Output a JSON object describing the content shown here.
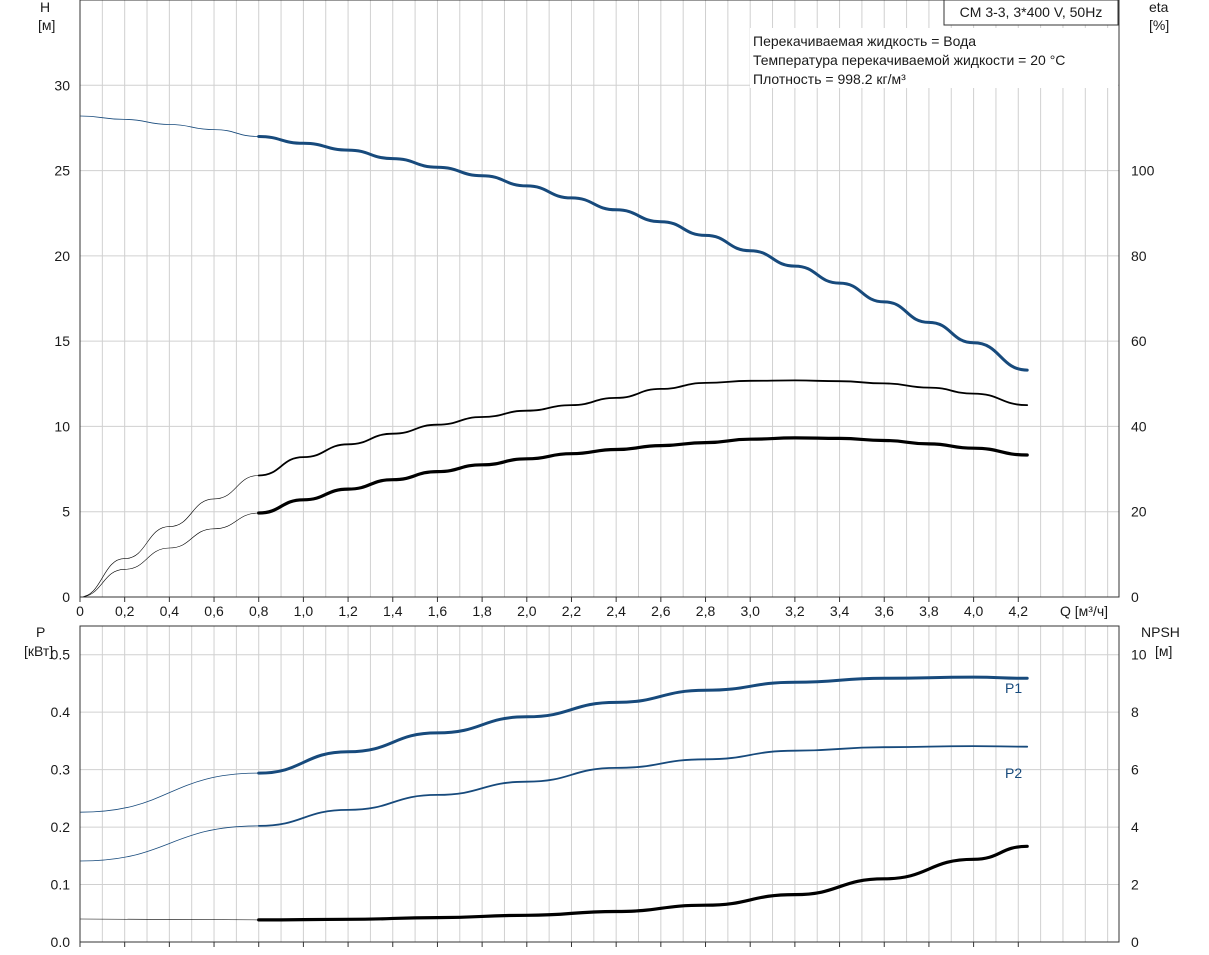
{
  "header": {
    "model_label": "CM 3-3, 3*400 V, 50Hz",
    "info_lines": [
      "Перекачиваемая жидкость = Вода",
      "Температура перекачиваемой жидкости = 20 °C",
      "Плотность = 998.2 кг/м³"
    ]
  },
  "colors": {
    "head_curve": "#174a7c",
    "eta_curves": "#000000",
    "power_curves": "#174a7c",
    "npsh_curve": "#000000",
    "grid": "#d0d0d0"
  },
  "chart_data": [
    {
      "type": "line",
      "panel": "head-efficiency",
      "xlabel": "Q [м³/ч]",
      "ylabel_left": [
        "H",
        "[м]"
      ],
      "ylabel_right": [
        "eta",
        "[%]"
      ],
      "xlim": [
        0,
        4.6
      ],
      "ylim_left": [
        0,
        35
      ],
      "ylim_right": [
        0,
        140
      ],
      "x_ticks": [
        "0",
        "0,2",
        "0,4",
        "0,6",
        "0,8",
        "1,0",
        "1,2",
        "1,4",
        "1,6",
        "1,8",
        "2,0",
        "2,2",
        "2,4",
        "2,6",
        "2,8",
        "3,0",
        "3,2",
        "3,4",
        "3,6",
        "3,8",
        "4,0",
        "4,2"
      ],
      "y_ticks_left": [
        0,
        5,
        10,
        15,
        20,
        25,
        30
      ],
      "y_ticks_right": [
        0,
        20,
        40,
        60,
        80,
        100
      ],
      "grid": true,
      "series": [
        {
          "axis": "left",
          "style": "blue-thick",
          "x": [
            0,
            0.2,
            0.4,
            0.6,
            0.8,
            1.0,
            1.2,
            1.4,
            1.6,
            1.8,
            2.0,
            2.2,
            2.4,
            2.6,
            2.8,
            3.0,
            3.2,
            3.4,
            3.6,
            3.8,
            4.0,
            4.24
          ],
          "y": [
            28.2,
            28.0,
            27.7,
            27.4,
            27.0,
            26.6,
            26.2,
            25.7,
            25.2,
            24.7,
            24.1,
            23.4,
            22.7,
            22.0,
            21.2,
            20.3,
            19.4,
            18.4,
            17.3,
            16.1,
            14.9,
            13.3
          ],
          "solid_from": 0.8
        },
        {
          "axis": "right",
          "style": "black-thin",
          "x": [
            0,
            0.2,
            0.4,
            0.6,
            0.8,
            1.0,
            1.2,
            1.4,
            1.6,
            1.8,
            2.0,
            2.2,
            2.4,
            2.6,
            2.8,
            3.0,
            3.2,
            3.4,
            3.6,
            3.8,
            4.0,
            4.24
          ],
          "y": [
            0,
            9,
            16.5,
            23,
            28.5,
            32.8,
            35.8,
            38.3,
            40.4,
            42.2,
            43.7,
            45.0,
            46.7,
            48.8,
            50.2,
            50.7,
            50.8,
            50.6,
            50.1,
            49.1,
            47.7,
            45.0
          ],
          "solid_from": 0.8
        },
        {
          "axis": "right",
          "style": "black-thick",
          "x": [
            0,
            0.2,
            0.4,
            0.6,
            0.8,
            1.0,
            1.2,
            1.4,
            1.6,
            1.8,
            2.0,
            2.2,
            2.4,
            2.6,
            2.8,
            3.0,
            3.2,
            3.4,
            3.6,
            3.8,
            4.0,
            4.24
          ],
          "y": [
            0,
            6.5,
            11.5,
            16,
            19.7,
            22.8,
            25.3,
            27.5,
            29.4,
            31.0,
            32.4,
            33.6,
            34.6,
            35.5,
            36.2,
            37.0,
            37.3,
            37.2,
            36.7,
            35.9,
            34.9,
            33.3
          ],
          "solid_from": 0.8
        }
      ]
    },
    {
      "type": "line",
      "panel": "power-npsh",
      "ylabel_left": [
        "P",
        "[кВт]"
      ],
      "ylabel_right": [
        "NPSH",
        "[м]"
      ],
      "xlim": [
        0,
        4.6
      ],
      "ylim_left": [
        0,
        0.55
      ],
      "ylim_right": [
        0,
        11
      ],
      "y_ticks_left": [
        "0.0",
        "0.1",
        "0.2",
        "0.3",
        "0.4",
        "0.5"
      ],
      "y_ticks_right": [
        0,
        2,
        4,
        6,
        8,
        10
      ],
      "grid": true,
      "series": [
        {
          "name": "P1",
          "axis": "left",
          "style": "blue-thick",
          "x": [
            0,
            0.8,
            1.2,
            1.6,
            2.0,
            2.4,
            2.8,
            3.2,
            3.6,
            4.0,
            4.24
          ],
          "y": [
            0.226,
            0.294,
            0.331,
            0.364,
            0.392,
            0.417,
            0.438,
            0.452,
            0.459,
            0.461,
            0.459
          ],
          "solid_from": 0.8
        },
        {
          "name": "P2",
          "axis": "left",
          "style": "blue-thin",
          "x": [
            0,
            0.8,
            1.2,
            1.6,
            2.0,
            2.4,
            2.8,
            3.2,
            3.6,
            4.0,
            4.24
          ],
          "y": [
            0.141,
            0.202,
            0.23,
            0.256,
            0.279,
            0.303,
            0.318,
            0.333,
            0.339,
            0.341,
            0.34
          ],
          "solid_from": 0.8
        },
        {
          "axis": "right",
          "style": "black-thick",
          "x": [
            0,
            0.8,
            1.2,
            1.6,
            2.0,
            2.4,
            2.8,
            3.2,
            3.6,
            4.0,
            4.24
          ],
          "y": [
            0.8,
            0.77,
            0.79,
            0.85,
            0.93,
            1.06,
            1.28,
            1.65,
            2.2,
            2.88,
            3.33
          ],
          "solid_from": 0.8
        }
      ]
    }
  ]
}
